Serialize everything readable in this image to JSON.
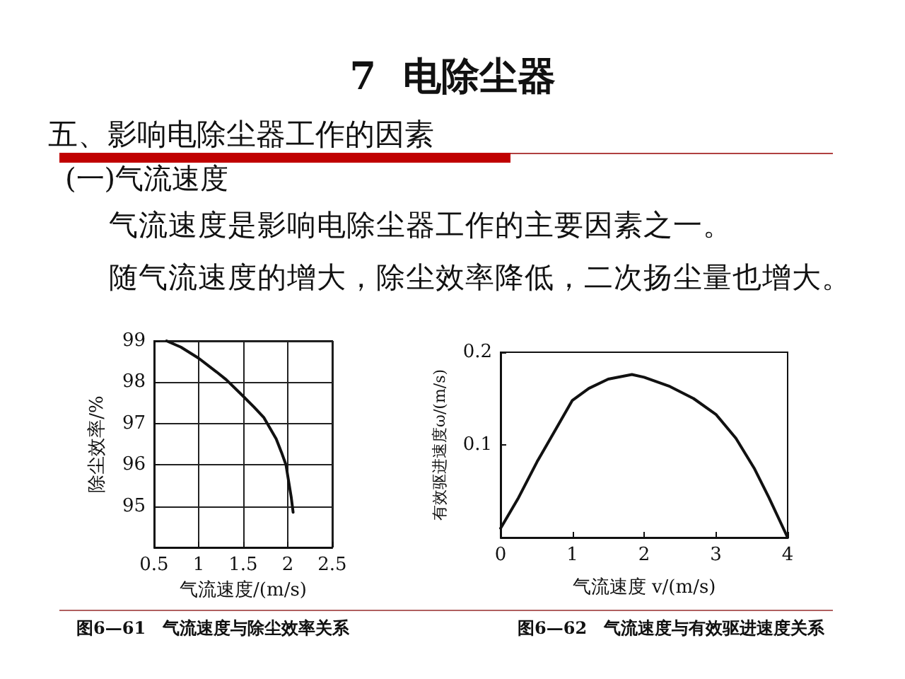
{
  "chart_data": [
    {
      "type": "other",
      "title": "7  电除尘器",
      "subtitle": "五、影响电除尘器工作的因素",
      "annotations": [
        "(一)气流速度",
        "气流速度是影响电除尘器工作的主要因素之一。",
        "随气流速度的增大，除尘效率降低，二次扬尘量也增大。"
      ]
    },
    {
      "type": "line",
      "title": "图6—61　气流速度与除尘效率关系",
      "xlabel": "气流速度/(m/s)",
      "ylabel": "除尘效率/%",
      "x": [
        0.64,
        0.8,
        1.0,
        1.2,
        1.31,
        1.5,
        1.62,
        1.73,
        1.87,
        1.93,
        1.98,
        2.01,
        2.04,
        2.06
      ],
      "series": [
        {
          "color": "#111111",
          "values": [
            99.0,
            98.85,
            98.58,
            98.25,
            98.06,
            97.66,
            97.4,
            97.15,
            96.63,
            96.3,
            96.0,
            95.6,
            95.2,
            94.85
          ]
        }
      ],
      "xlim": [
        0.5,
        2.5
      ],
      "xticks": [
        0.5,
        1,
        1.5,
        2,
        2.5
      ],
      "ylim": [
        94,
        99
      ],
      "yticks": [
        95,
        96,
        97,
        98,
        99
      ],
      "grid": true,
      "marker": "none",
      "line_style": "solid"
    },
    {
      "type": "line",
      "title": "图6—62　气流速度与有效驱进速度关系",
      "xlabel": "气流速度 v/(m/s)",
      "ylabel": "有效驱进速度ω/(m/s)",
      "x": [
        0,
        0.25,
        0.51,
        0.77,
        1.0,
        1.23,
        1.5,
        1.83,
        2.0,
        2.36,
        2.69,
        3.0,
        3.28,
        3.54,
        3.74,
        4.0
      ],
      "series": [
        {
          "color": "#111111",
          "values": [
            0.01,
            0.043,
            0.082,
            0.117,
            0.148,
            0.161,
            0.171,
            0.176,
            0.173,
            0.163,
            0.15,
            0.133,
            0.107,
            0.074,
            0.043,
            0.0
          ]
        }
      ],
      "xlim": [
        0,
        4
      ],
      "xticks": [
        0,
        1,
        2,
        3,
        4
      ],
      "ylim": [
        0,
        0.2
      ],
      "yticks": [
        0.1,
        0.2
      ],
      "grid": false,
      "marker": "none",
      "line_style": "solid"
    }
  ]
}
